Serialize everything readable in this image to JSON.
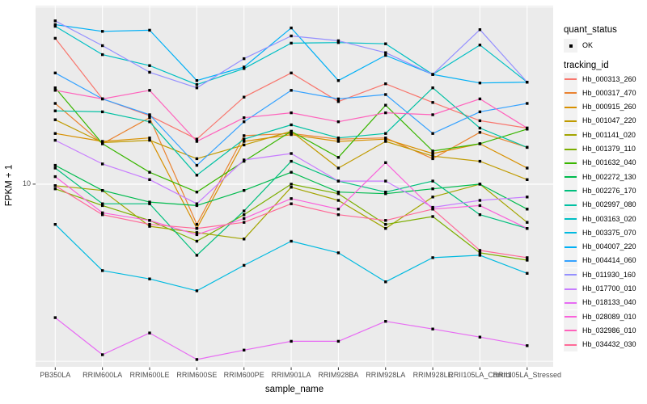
{
  "chart_data": {
    "type": "line",
    "title": "",
    "xlabel": "sample_name",
    "ylabel": "FPKM + 1",
    "y_scale": "log10",
    "y_ticks": [
      10
    ],
    "y_tick_labels": [
      "10"
    ],
    "ylim": [
      3.05,
      31.9
    ],
    "grid": "on",
    "legend_position": "right",
    "panel_bg": "#EBEBEB",
    "grid_color": "#FFFFFF",
    "point_color": "#000000",
    "axis_text_color": "#4D4D4D",
    "categories": [
      "PB350LA",
      "RRIM600LA",
      "RRIM600LE",
      "RRIM600SE",
      "RRIM600PE",
      "RRIM901LA",
      "RRIM928BA",
      "RRIM928LA",
      "RRIM928LE",
      "RRII105LA_Control",
      "RRII105LA_Stressed"
    ],
    "legend": {
      "quant_status_title": "quant_status",
      "quant_status_items": [
        {
          "label": "OK",
          "symbol": "filled-point",
          "color": "#000000"
        }
      ],
      "tracking_title": "tracking_id"
    },
    "series": [
      {
        "name": "Hb_000313_260",
        "color": "#F8766D",
        "values": [
          25.8,
          17.4,
          15.6,
          13.4,
          17.6,
          20.6,
          17.1,
          19.2,
          17.0,
          15.1,
          14.4
        ]
      },
      {
        "name": "Hb_000317_470",
        "color": "#EA8331",
        "values": [
          16.9,
          13.0,
          15.4,
          7.7,
          13.7,
          13.9,
          13.4,
          13.5,
          11.8,
          14.0,
          12.7
        ]
      },
      {
        "name": "Hb_000915_260",
        "color": "#D89000",
        "values": [
          13.9,
          13.2,
          13.5,
          7.5,
          13.2,
          13.8,
          13.2,
          13.4,
          12.2,
          13.0,
          11.1
        ]
      },
      {
        "name": "Hb_001047_220",
        "color": "#C09B00",
        "values": [
          15.2,
          13.1,
          13.3,
          11.8,
          12.9,
          14.1,
          11.1,
          13.2,
          12.0,
          11.6,
          10.3
        ]
      },
      {
        "name": "Hb_001141_020",
        "color": "#A3A500",
        "values": [
          9.9,
          9.6,
          7.6,
          7.3,
          7.0,
          9.8,
          9.0,
          7.5,
          9.2,
          10.0,
          7.8
        ]
      },
      {
        "name": "Hb_001379_110",
        "color": "#7CAE00",
        "values": [
          9.7,
          8.7,
          7.9,
          6.9,
          8.2,
          10.0,
          9.4,
          7.7,
          8.1,
          6.4,
          6.1
        ]
      },
      {
        "name": "Hb_001632_040",
        "color": "#39B600",
        "values": [
          18.7,
          13.0,
          10.8,
          9.5,
          11.6,
          14.1,
          11.9,
          16.7,
          12.4,
          13.0,
          14.3
        ]
      },
      {
        "name": "Hb_002272_130",
        "color": "#00BB4E",
        "values": [
          11.3,
          9.6,
          8.9,
          8.7,
          9.6,
          10.8,
          9.5,
          9.4,
          9.7,
          10.0,
          8.5
        ]
      },
      {
        "name": "Hb_002276_170",
        "color": "#00BF7D",
        "values": [
          11.1,
          8.8,
          8.8,
          6.3,
          8.4,
          11.6,
          10.2,
          9.5,
          10.2,
          8.2,
          7.5
        ]
      },
      {
        "name": "Hb_002997_080",
        "color": "#00C1A3",
        "values": [
          16.1,
          16.0,
          15.0,
          10.6,
          13.4,
          14.7,
          13.5,
          13.9,
          18.7,
          14.4,
          12.7
        ]
      },
      {
        "name": "Hb_003163_020",
        "color": "#00BFC4",
        "values": [
          27.9,
          23.2,
          21.6,
          19.1,
          21.2,
          25.0,
          25.1,
          24.9,
          20.4,
          24.7,
          19.4
        ]
      },
      {
        "name": "Hb_003375_070",
        "color": "#00BAE0",
        "values": [
          7.7,
          5.7,
          5.4,
          5.0,
          5.9,
          6.9,
          6.4,
          5.3,
          6.2,
          6.3,
          5.6
        ]
      },
      {
        "name": "Hb_004007_220",
        "color": "#00B0F6",
        "values": [
          28.2,
          27.0,
          27.2,
          19.6,
          21.4,
          27.6,
          19.6,
          23.1,
          20.4,
          19.3,
          19.4
        ]
      },
      {
        "name": "Hb_004414_060",
        "color": "#35A2FF",
        "values": [
          20.6,
          17.4,
          15.7,
          11.3,
          15.0,
          18.4,
          17.4,
          17.9,
          13.9,
          16.0,
          16.9
        ]
      },
      {
        "name": "Hb_011930_160",
        "color": "#9590FF",
        "values": [
          28.9,
          24.6,
          20.7,
          18.7,
          22.6,
          26.2,
          25.4,
          23.5,
          20.4,
          27.3,
          19.4
        ]
      },
      {
        "name": "Hb_017700_010",
        "color": "#C77CFF",
        "values": [
          13.3,
          11.4,
          10.3,
          8.8,
          11.7,
          12.2,
          10.2,
          10.2,
          8.6,
          9.0,
          9.2
        ]
      },
      {
        "name": "Hb_018133_040",
        "color": "#E76BF3",
        "values": [
          4.2,
          3.3,
          3.8,
          3.2,
          3.4,
          3.6,
          3.6,
          4.1,
          3.9,
          3.7,
          3.5
        ]
      },
      {
        "name": "Hb_028089_010",
        "color": "#FA62DB",
        "values": [
          10.5,
          8.3,
          7.9,
          7.2,
          8.0,
          9.1,
          8.5,
          11.5,
          8.5,
          8.7,
          7.5
        ]
      },
      {
        "name": "Hb_032986_010",
        "color": "#FF62BC",
        "values": [
          18.4,
          17.4,
          18.4,
          13.2,
          15.4,
          15.9,
          15.0,
          15.9,
          15.7,
          17.4,
          14.4
        ]
      },
      {
        "name": "Hb_034432_030",
        "color": "#FF6A98",
        "values": [
          9.9,
          8.2,
          7.7,
          7.5,
          7.8,
          8.8,
          8.2,
          7.9,
          8.5,
          6.5,
          6.2
        ]
      }
    ]
  }
}
